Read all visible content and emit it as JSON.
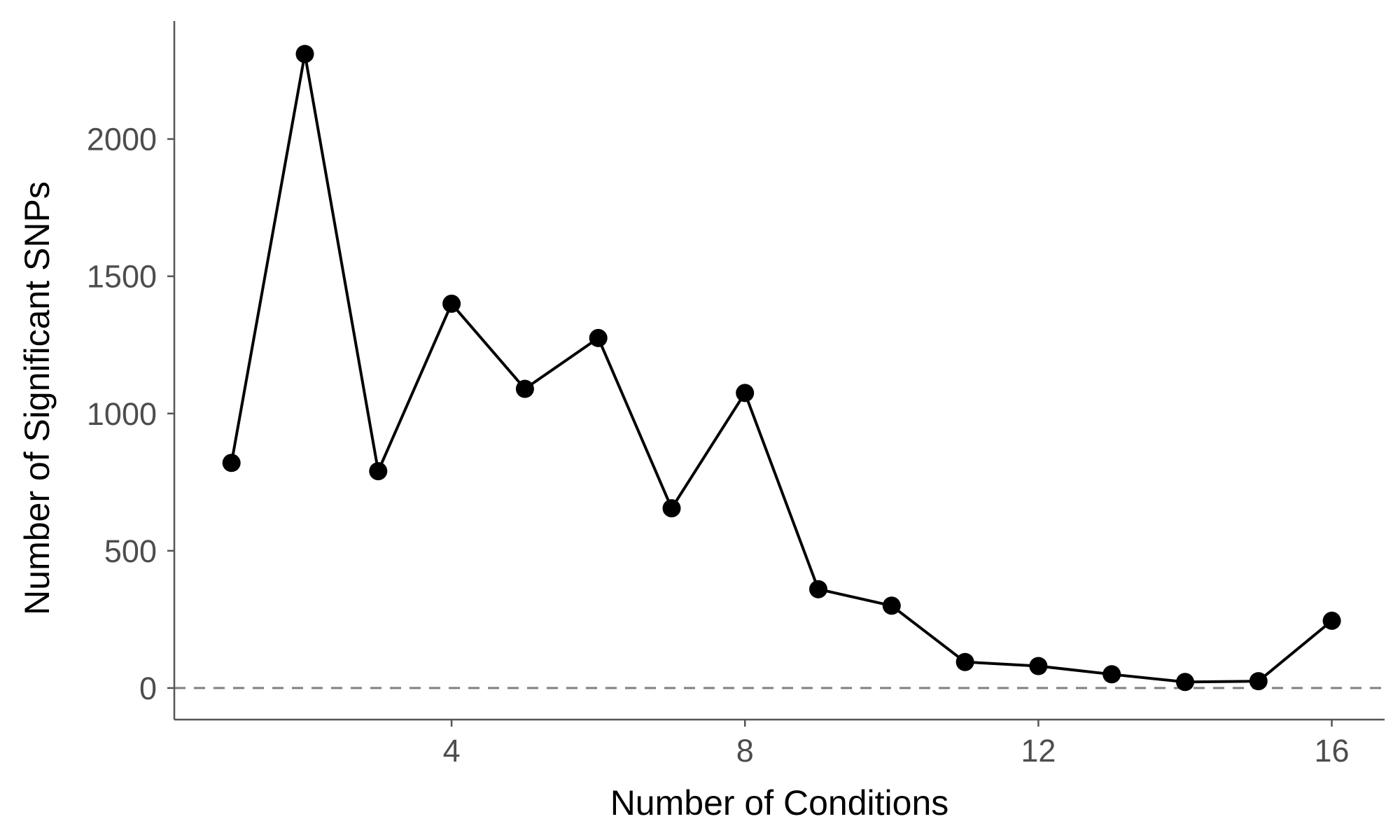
{
  "chart_data": {
    "type": "line",
    "title": "",
    "xlabel": "Number of Conditions",
    "ylabel": "Number of Significant SNPs",
    "x": [
      1,
      2,
      3,
      4,
      5,
      6,
      7,
      8,
      9,
      10,
      11,
      12,
      13,
      14,
      15,
      16
    ],
    "series": [
      {
        "values": [
          820,
          2310,
          790,
          1400,
          1090,
          1275,
          655,
          1075,
          360,
          300,
          95,
          80,
          50,
          22,
          25,
          245
        ],
        "color": "#000000"
      }
    ],
    "xticks": [
      4,
      8,
      12,
      16
    ],
    "yticks": [
      0,
      500,
      1000,
      1500,
      2000
    ],
    "xlim": [
      0.22,
      16.72
    ],
    "ylim": [
      -115,
      2430
    ],
    "reference_line": {
      "y": 0,
      "style": "dashed",
      "color": "#808080"
    },
    "grid": false,
    "legend": "none"
  }
}
